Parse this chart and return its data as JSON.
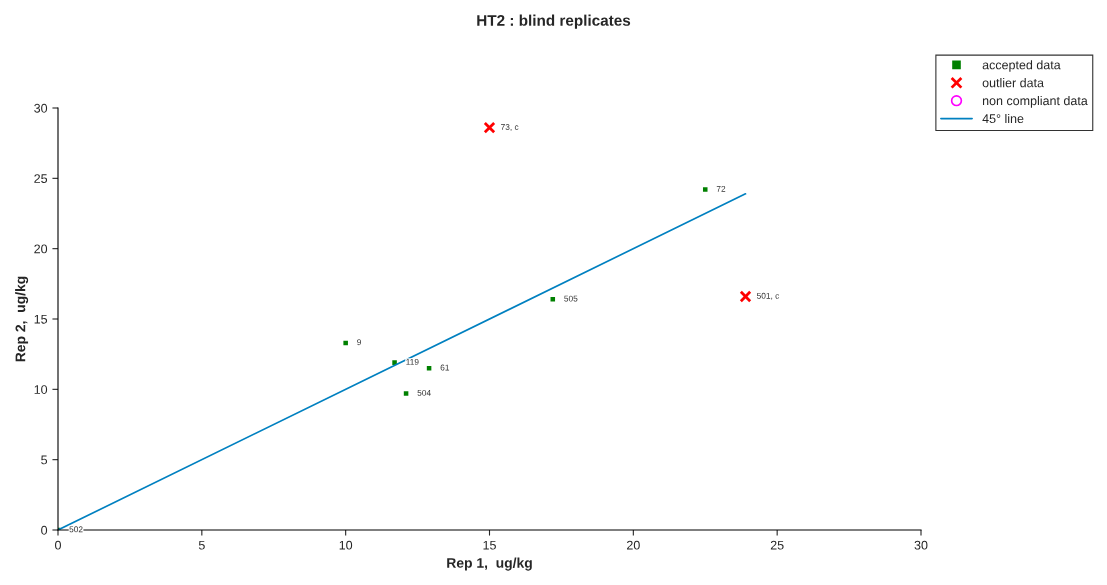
{
  "chart_data": {
    "type": "scatter",
    "title": "HT2 : blind replicates",
    "xlabel": "Rep 1,  ug/kg",
    "ylabel": "Rep 2,  ug/kg",
    "xlim": [
      0,
      30
    ],
    "ylim": [
      0,
      30
    ],
    "xticks": [
      0,
      5,
      10,
      15,
      20,
      25,
      30
    ],
    "yticks": [
      0,
      5,
      10,
      15,
      20,
      25,
      30
    ],
    "grid": false,
    "legend": "top right",
    "series": [
      {
        "name": "accepted data",
        "color": "#008000",
        "marker": "square",
        "x": [
          10.0,
          11.7,
          12.9,
          12.1,
          17.2,
          22.5,
          0
        ],
        "values": [
          13.3,
          11.9,
          11.5,
          9.7,
          16.4,
          24.2,
          0
        ]
      },
      {
        "name": "outlier data",
        "color": "#ff0000",
        "marker": "cross",
        "x": [
          15.0,
          23.9
        ],
        "values": [
          28.6,
          16.6
        ]
      },
      {
        "name": "non compliant data",
        "color": "#ff00ff",
        "marker": "circle"
      },
      {
        "name": "45° line",
        "type": "line",
        "color": "#0080c0",
        "marker": "none",
        "x": [
          0,
          23.9
        ],
        "values": [
          0,
          23.9
        ]
      }
    ],
    "annotations": [
      {
        "text": "9",
        "x": 10.0,
        "y": 13.3
      },
      {
        "text": "119",
        "x": 11.7,
        "y": 11.9
      },
      {
        "text": "61",
        "x": 12.9,
        "y": 11.5
      },
      {
        "text": "504",
        "x": 12.1,
        "y": 9.7
      },
      {
        "text": "505",
        "x": 17.2,
        "y": 16.4
      },
      {
        "text": "72",
        "x": 22.5,
        "y": 24.2
      },
      {
        "text": "502",
        "x": 0,
        "y": 0
      },
      {
        "text": "73, c",
        "x": 15.0,
        "y": 28.6
      },
      {
        "text": "501, c",
        "x": 23.9,
        "y": 16.6
      }
    ]
  }
}
